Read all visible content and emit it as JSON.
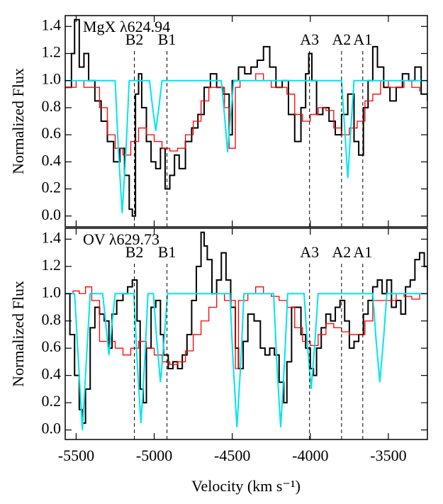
{
  "chart_data": [
    {
      "type": "line",
      "title": "MgX λ624.94",
      "ylabel": "Normalized Flux",
      "xlim": [
        -5570,
        -3250
      ],
      "ylim": [
        -0.08,
        1.48
      ],
      "xticks": [
        -5500,
        -5000,
        -4500,
        -4000,
        -3500
      ],
      "yticks": [
        {
          "value": 0,
          "label": "0.0"
        },
        0.2,
        0.4,
        0.6,
        0.8,
        {
          "value": 1,
          "label": "1.0"
        },
        1.2,
        1.4
      ],
      "markers": [
        {
          "label": "B2",
          "x": -5127
        },
        {
          "label": "B1",
          "x": -4918
        },
        {
          "label": "A3",
          "x": -4005
        },
        {
          "label": "A2",
          "x": -3800
        },
        {
          "label": "A1",
          "x": -3664
        }
      ],
      "series": [
        {
          "color": "#000000",
          "drawstyle": "steps",
          "x": [
            -5570,
            -5530,
            -5510,
            -5480,
            -5450,
            -5420,
            -5380,
            -5340,
            -5300,
            -5260,
            -5220,
            -5190,
            -5160,
            -5140,
            -5120,
            -5100,
            -5080,
            -5050,
            -5020,
            -4990,
            -4960,
            -4930,
            -4900,
            -4870,
            -4840,
            -4800,
            -4760,
            -4720,
            -4680,
            -4640,
            -4600,
            -4560,
            -4520,
            -4500,
            -4460,
            -4420,
            -4380,
            -4340,
            -4300,
            -4260,
            -4220,
            -4180,
            -4140,
            -4100,
            -4060,
            -4030,
            -4010,
            -3990,
            -3960,
            -3920,
            -3880,
            -3840,
            -3800,
            -3760,
            -3720,
            -3690,
            -3660,
            -3630,
            -3600,
            -3570,
            -3530,
            -3490,
            -3450,
            -3410,
            -3370,
            -3330,
            -3290,
            -3250
          ],
          "values": [
            0.95,
            1.2,
            1.45,
            1.1,
            1.2,
            1.0,
            0.85,
            0.7,
            0.55,
            0.4,
            0.5,
            0.3,
            0.05,
            0.0,
            0.9,
            1.05,
            0.8,
            0.55,
            0.4,
            0.35,
            0.5,
            0.2,
            0.3,
            0.45,
            0.35,
            0.55,
            0.65,
            0.75,
            0.95,
            1.05,
            0.95,
            0.9,
            0.6,
            1.0,
            1.1,
            1.05,
            1.1,
            1.15,
            1.25,
            1.1,
            0.95,
            1.0,
            0.75,
            0.55,
            0.8,
            1.05,
            1.2,
            1.0,
            0.75,
            0.8,
            0.7,
            0.6,
            0.75,
            0.9,
            0.55,
            0.45,
            0.8,
            1.0,
            1.25,
            1.1,
            0.95,
            0.85,
            0.95,
            1.05,
            1.0,
            1.1,
            0.9,
            0.85
          ]
        },
        {
          "color": "#ff0000",
          "drawstyle": "steps",
          "x": [
            -5570,
            -5500,
            -5450,
            -5400,
            -5350,
            -5300,
            -5250,
            -5200,
            -5150,
            -5100,
            -5050,
            -5000,
            -4950,
            -4900,
            -4850,
            -4800,
            -4750,
            -4700,
            -4650,
            -4600,
            -4550,
            -4520,
            -4480,
            -4450,
            -4400,
            -4350,
            -4300,
            -4250,
            -4200,
            -4150,
            -4100,
            -4050,
            -4000,
            -3950,
            -3900,
            -3850,
            -3800,
            -3750,
            -3700,
            -3650,
            -3600,
            -3550,
            -3500,
            -3450,
            -3400,
            -3350,
            -3300
          ],
          "values": [
            0.95,
            1.0,
            0.95,
            0.95,
            0.8,
            0.6,
            0.5,
            0.45,
            0.55,
            0.65,
            0.6,
            0.55,
            0.5,
            0.48,
            0.5,
            0.6,
            0.7,
            0.85,
            0.95,
            0.95,
            0.8,
            0.5,
            0.95,
            1.0,
            1.0,
            1.05,
            1.0,
            0.95,
            0.95,
            0.9,
            0.75,
            0.7,
            0.75,
            0.8,
            0.78,
            0.65,
            0.6,
            0.65,
            0.7,
            0.85,
            0.9,
            1.0,
            0.95,
            0.95,
            1.0,
            0.95,
            0.92
          ]
        },
        {
          "color": "#00e5ee",
          "drawstyle": "line",
          "x": [
            -5570,
            -5250,
            -5230,
            -5205,
            -5180,
            -5160,
            -5030,
            -5010,
            -4990,
            -4970,
            -4950,
            -4570,
            -4550,
            -4530,
            -4510,
            -4490,
            -3800,
            -3780,
            -3760,
            -3740,
            -3720,
            -3250
          ],
          "values": [
            1,
            1,
            0.5,
            0.02,
            0.5,
            1,
            1,
            0.8,
            0.63,
            0.8,
            1,
            1,
            0.75,
            0.47,
            0.75,
            1,
            1,
            0.65,
            0.28,
            0.65,
            1,
            1
          ]
        }
      ]
    },
    {
      "type": "line",
      "title": "OV λ629.73",
      "ylabel": "Normalized Flux",
      "xlabel": "Velocity (km s⁻¹)",
      "xlim": [
        -5570,
        -3250
      ],
      "ylim": [
        -0.07,
        1.48
      ],
      "xticks": [
        -5500,
        -5000,
        -4500,
        -4000,
        -3500
      ],
      "yticks": [
        {
          "value": 0,
          "label": "0.0"
        },
        0.2,
        0.4,
        0.6,
        0.8,
        {
          "value": 1,
          "label": "1.0"
        },
        1.2,
        1.4
      ],
      "markers": [
        {
          "label": "B2",
          "x": -5127
        },
        {
          "label": "B1",
          "x": -4918
        },
        {
          "label": "A3",
          "x": -4005
        },
        {
          "label": "A2",
          "x": -3800
        },
        {
          "label": "A1",
          "x": -3664
        }
      ],
      "series": [
        {
          "color": "#000000",
          "drawstyle": "steps",
          "x": [
            -5570,
            -5540,
            -5510,
            -5480,
            -5460,
            -5440,
            -5410,
            -5380,
            -5350,
            -5320,
            -5290,
            -5270,
            -5240,
            -5200,
            -5170,
            -5140,
            -5110,
            -5090,
            -5070,
            -5050,
            -5020,
            -4990,
            -4960,
            -4940,
            -4910,
            -4880,
            -4850,
            -4820,
            -4790,
            -4760,
            -4730,
            -4700,
            -4680,
            -4660,
            -4630,
            -4600,
            -4570,
            -4540,
            -4510,
            -4480,
            -4460,
            -4430,
            -4400,
            -4360,
            -4320,
            -4290,
            -4260,
            -4230,
            -4200,
            -4170,
            -4150,
            -4120,
            -4090,
            -4060,
            -4030,
            -4000,
            -3980,
            -3960,
            -3930,
            -3900,
            -3870,
            -3840,
            -3810,
            -3780,
            -3750,
            -3720,
            -3690,
            -3660,
            -3630,
            -3600,
            -3570,
            -3540,
            -3510,
            -3480,
            -3450,
            -3420,
            -3390,
            -3360,
            -3330,
            -3300,
            -3270,
            -3250
          ],
          "values": [
            1.0,
            0.7,
            0.4,
            0.15,
            0.05,
            0.3,
            0.75,
            0.9,
            0.85,
            0.8,
            0.6,
            0.85,
            0.95,
            1.0,
            1.05,
            1.1,
            0.8,
            0.3,
            0.2,
            0.6,
            0.9,
            0.95,
            0.7,
            0.55,
            0.45,
            0.5,
            0.45,
            0.55,
            0.7,
            0.95,
            1.2,
            1.45,
            1.35,
            1.25,
            1.0,
            1.1,
            1.3,
            1.1,
            0.9,
            0.6,
            0.45,
            0.65,
            0.85,
            0.8,
            0.6,
            0.55,
            0.6,
            0.55,
            0.35,
            0.2,
            0.5,
            0.9,
            0.9,
            0.7,
            0.6,
            0.45,
            0.4,
            0.6,
            0.75,
            0.85,
            0.8,
            0.9,
            0.95,
            0.8,
            0.6,
            0.65,
            0.7,
            0.85,
            0.95,
            1.05,
            1.1,
            1.0,
            1.1,
            0.9,
            0.95,
            0.85,
            1.05,
            1.1,
            1.25,
            1.3,
            1.2,
            1.1
          ]
        },
        {
          "color": "#ff0000",
          "drawstyle": "steps",
          "x": [
            -5570,
            -5520,
            -5480,
            -5440,
            -5400,
            -5350,
            -5300,
            -5250,
            -5200,
            -5150,
            -5100,
            -5050,
            -5000,
            -4950,
            -4900,
            -4850,
            -4800,
            -4750,
            -4700,
            -4650,
            -4600,
            -4550,
            -4480,
            -4460,
            -4400,
            -4350,
            -4300,
            -4250,
            -4200,
            -4150,
            -4100,
            -4050,
            -4000,
            -3950,
            -3900,
            -3850,
            -3800,
            -3750,
            -3700,
            -3650,
            -3600,
            -3550,
            -3500,
            -3450,
            -3400,
            -3350,
            -3300
          ],
          "values": [
            1.0,
            1.02,
            1.0,
            1.05,
            0.95,
            0.65,
            0.65,
            0.6,
            0.55,
            0.6,
            0.65,
            0.6,
            0.55,
            0.5,
            0.48,
            0.5,
            0.58,
            0.7,
            0.8,
            0.9,
            1.0,
            0.95,
            0.45,
            0.95,
            1.0,
            1.05,
            1.0,
            0.98,
            0.95,
            0.9,
            0.75,
            0.65,
            0.62,
            0.7,
            0.78,
            0.75,
            0.72,
            0.7,
            0.7,
            0.8,
            0.95,
            0.95,
            0.95,
            1.0,
            0.98,
            0.96,
            1.0
          ]
        },
        {
          "color": "#00e5ee",
          "drawstyle": "line",
          "x": [
            -5570,
            -5510,
            -5485,
            -5460,
            -5435,
            -5410,
            -5330,
            -5310,
            -5290,
            -5270,
            -5250,
            -5130,
            -5110,
            -5085,
            -5060,
            -5040,
            -5005,
            -4985,
            -4960,
            -4935,
            -4915,
            -4515,
            -4495,
            -4470,
            -4445,
            -4425,
            -4235,
            -4215,
            -4190,
            -4165,
            -4145,
            -4040,
            -4020,
            -3995,
            -3970,
            -3950,
            -3600,
            -3580,
            -3555,
            -3530,
            -3510,
            -3250
          ],
          "values": [
            1,
            1,
            0.5,
            0.0,
            0.5,
            1,
            1,
            0.78,
            0.55,
            0.78,
            1,
            1,
            0.52,
            0.05,
            0.52,
            1,
            1,
            0.68,
            0.35,
            0.68,
            1,
            1,
            0.5,
            0.02,
            0.5,
            1,
            1,
            0.5,
            0.02,
            0.5,
            1,
            1,
            0.65,
            0.3,
            0.65,
            1,
            1,
            0.68,
            0.35,
            0.68,
            1,
            1
          ]
        }
      ]
    }
  ]
}
